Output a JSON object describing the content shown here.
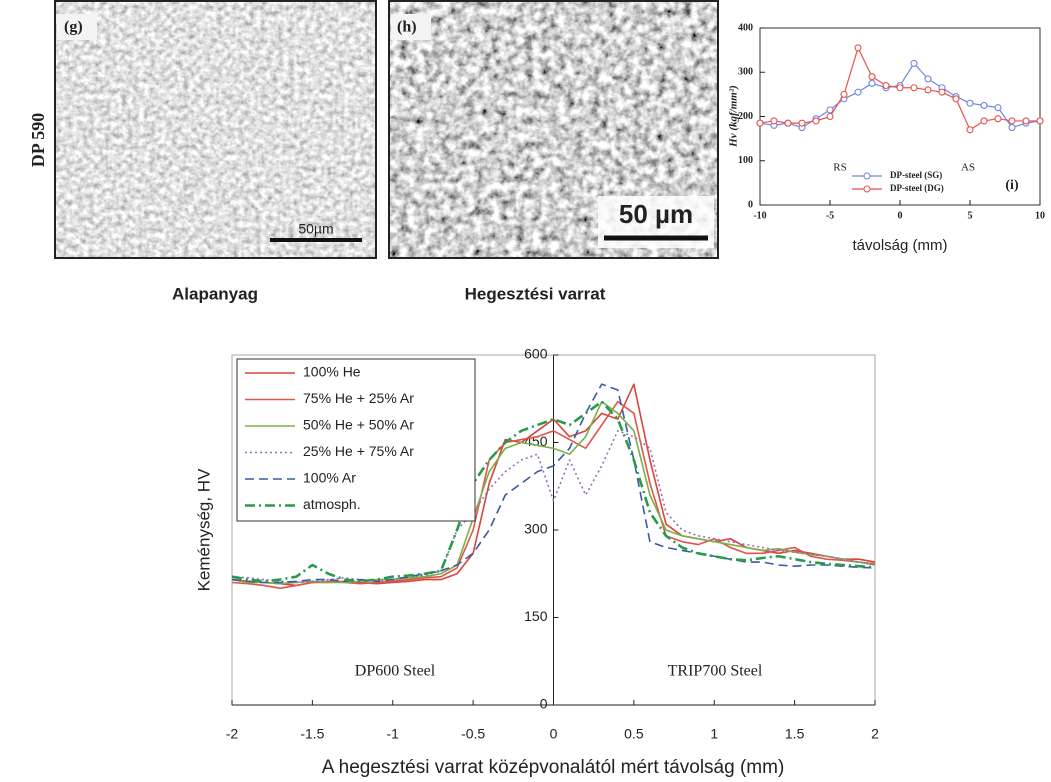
{
  "side_label": "DP 590",
  "panels": [
    {
      "label": "(g)",
      "scale_bar": "50µm",
      "caption": "Alapanyag"
    },
    {
      "label": "(h)",
      "scale_bar": "50 µm",
      "caption": "Hegesztési varrat"
    }
  ],
  "chart_data": [
    {
      "type": "line",
      "panel_label": "(i)",
      "xlabel": "távolság (mm)",
      "ylabel": "Hv (kgf/mm²)",
      "annotations": [
        "RS",
        "AS"
      ],
      "x": [
        -10,
        -9,
        -8,
        -7,
        -6,
        -5,
        -4,
        -3,
        -2,
        -1,
        0,
        1,
        2,
        3,
        4,
        5,
        6,
        7,
        8,
        9,
        10
      ],
      "xlim": [
        -10,
        10
      ],
      "xticks": [
        -10,
        -5,
        0,
        5,
        10
      ],
      "ylim": [
        0,
        400
      ],
      "yticks": [
        0,
        100,
        200,
        300,
        400
      ],
      "legend": "lower center",
      "markers": true,
      "series": [
        {
          "name": "DP-steel (SG)",
          "color": "#6f86e0",
          "dash": "solid",
          "values": [
            185,
            180,
            185,
            175,
            195,
            215,
            240,
            255,
            275,
            265,
            270,
            320,
            285,
            265,
            245,
            230,
            225,
            220,
            175,
            185,
            190
          ]
        },
        {
          "name": "DP-steel (DG)",
          "color": "#e8504a",
          "dash": "solid",
          "values": [
            185,
            190,
            185,
            185,
            190,
            200,
            250,
            355,
            290,
            270,
            265,
            265,
            260,
            255,
            240,
            170,
            190,
            195,
            190,
            190,
            190
          ]
        }
      ]
    },
    {
      "type": "line",
      "xlabel": "A hegesztési varrat középvonalától mért távolság (mm)",
      "ylabel": "Keménység, HV",
      "annotations": [
        "DP600 Steel",
        "TRIP700 Steel"
      ],
      "x": [
        -2,
        -1.9,
        -1.8,
        -1.7,
        -1.6,
        -1.5,
        -1.4,
        -1.3,
        -1.2,
        -1.1,
        -1,
        -0.9,
        -0.8,
        -0.7,
        -0.6,
        -0.5,
        -0.4,
        -0.3,
        -0.2,
        -0.1,
        0,
        0.1,
        0.2,
        0.3,
        0.4,
        0.5,
        0.6,
        0.7,
        0.8,
        0.9,
        1,
        1.1,
        1.2,
        1.3,
        1.4,
        1.5,
        1.6,
        1.7,
        1.8,
        1.9,
        2
      ],
      "xlim": [
        -2,
        2
      ],
      "xticks": [
        -2,
        -1.5,
        -1,
        -0.5,
        0,
        0.5,
        1,
        1.5,
        2
      ],
      "ylim": [
        0,
        600
      ],
      "yticks": [
        0,
        150,
        300,
        450,
        600
      ],
      "legend": "upper left",
      "markers": false,
      "series": [
        {
          "name": "100% He",
          "color": "#d9453a",
          "dash": "solid",
          "values": [
            215,
            212,
            210,
            208,
            205,
            210,
            210,
            212,
            210,
            208,
            210,
            212,
            215,
            215,
            225,
            260,
            380,
            455,
            450,
            470,
            490,
            460,
            470,
            500,
            490,
            550,
            420,
            310,
            290,
            285,
            280,
            285,
            270,
            265,
            260,
            265,
            260,
            255,
            250,
            250,
            245
          ]
        },
        {
          "name": "75% He + 25% Ar",
          "color": "#e0554a",
          "dash": "solid",
          "values": [
            210,
            208,
            205,
            200,
            205,
            210,
            212,
            210,
            208,
            210,
            212,
            215,
            218,
            220,
            235,
            300,
            420,
            450,
            455,
            460,
            470,
            455,
            440,
            480,
            520,
            500,
            380,
            290,
            280,
            275,
            285,
            270,
            260,
            260,
            265,
            270,
            255,
            250,
            248,
            245,
            242
          ]
        },
        {
          "name": "50% He + 50% Ar",
          "color": "#7ab04a",
          "dash": "solid",
          "values": [
            215,
            210,
            210,
            208,
            210,
            212,
            210,
            210,
            212,
            215,
            215,
            218,
            220,
            225,
            240,
            320,
            400,
            440,
            450,
            445,
            440,
            430,
            460,
            520,
            500,
            470,
            360,
            300,
            290,
            285,
            280,
            275,
            270,
            265,
            268,
            262,
            258,
            255,
            250,
            245,
            240
          ]
        },
        {
          "name": "25% He + 75% Ar",
          "color": "#9a6ac0",
          "dash": "dotted",
          "values": [
            220,
            218,
            215,
            212,
            210,
            212,
            215,
            218,
            215,
            212,
            215,
            220,
            222,
            230,
            300,
            330,
            370,
            400,
            420,
            430,
            350,
            420,
            360,
            410,
            470,
            460,
            440,
            330,
            300,
            290,
            285,
            280,
            275,
            270,
            265,
            262,
            258,
            255,
            250,
            245,
            240
          ]
        },
        {
          "name": "100% Ar",
          "color": "#3a5aa8",
          "dash": "dashed",
          "values": [
            215,
            212,
            210,
            210,
            212,
            215,
            215,
            212,
            215,
            212,
            215,
            220,
            225,
            230,
            240,
            260,
            300,
            360,
            380,
            400,
            410,
            440,
            500,
            550,
            540,
            420,
            280,
            270,
            265,
            260,
            255,
            250,
            245,
            245,
            240,
            238,
            240,
            240,
            238,
            236,
            235
          ]
        },
        {
          "name": "atmosph.",
          "color": "#2a9a4a",
          "dash": "dashdot",
          "values": [
            220,
            215,
            212,
            215,
            220,
            240,
            225,
            215,
            212,
            215,
            220,
            222,
            225,
            230,
            300,
            380,
            420,
            450,
            470,
            480,
            490,
            480,
            500,
            520,
            490,
            420,
            330,
            290,
            270,
            260,
            255,
            250,
            248,
            252,
            255,
            250,
            245,
            242,
            240,
            238,
            236
          ]
        }
      ]
    }
  ]
}
